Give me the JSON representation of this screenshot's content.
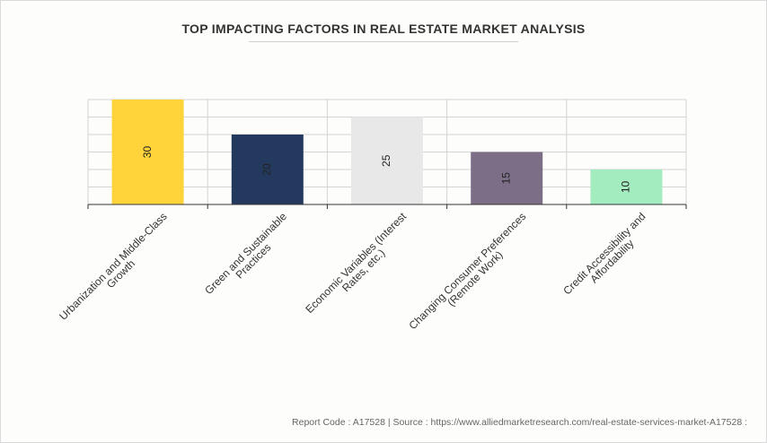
{
  "chart_data": {
    "type": "bar",
    "title": "TOP IMPACTING FACTORS IN REAL ESTATE MARKET ANALYSIS",
    "categories": [
      [
        "Urbanization and Middle-Class",
        "Growth"
      ],
      [
        "Green and Sustainable",
        "Practices"
      ],
      [
        "Economic Variables (Interest",
        "Rates, etc.)"
      ],
      [
        "Changing Consumer Preferences",
        "(Remote Work)"
      ],
      [
        "Credit Accessibility and",
        "Affordability"
      ]
    ],
    "values": [
      30,
      20,
      25,
      15,
      10
    ],
    "colors": [
      "#ffd43b",
      "#233a5e",
      "#e8e8e8",
      "#7c6e87",
      "#a3ecbf"
    ],
    "ylim": [
      0,
      30
    ],
    "grid": true,
    "xlabel": "",
    "ylabel": ""
  },
  "footer": {
    "report_code": "Report Code : A17528",
    "separator": "|",
    "source": "Source : https://www.alliedmarketresearch.com/real-estate-services-market-A17528 :"
  }
}
